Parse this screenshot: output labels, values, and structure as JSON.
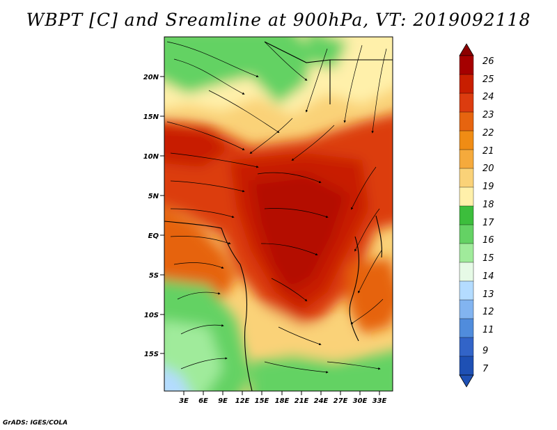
{
  "title": "WBPT [C] and Sreamline at 900hPa, VT: 2019092118",
  "credit": "GrADS: IGES/COLA",
  "map": {
    "lat_labels": [
      "20N",
      "15N",
      "10N",
      "5N",
      "EQ",
      "5S",
      "10S",
      "15S"
    ],
    "lon_labels": [
      "3E",
      "6E",
      "9E",
      "12E",
      "15E",
      "18E",
      "21E",
      "24E",
      "27E",
      "30E",
      "33E"
    ],
    "lon_range": [
      0,
      35
    ],
    "lat_range": [
      -20,
      25
    ]
  },
  "colorbar": {
    "labels": [
      "26",
      "25",
      "24",
      "23",
      "22",
      "21",
      "20",
      "19",
      "18",
      "17",
      "16",
      "15",
      "14",
      "13",
      "12",
      "11",
      "9",
      "7"
    ],
    "colors": [
      "#a50000",
      "#c81e00",
      "#dc3c0f",
      "#e6640f",
      "#f08c14",
      "#f5aa3c",
      "#fad278",
      "#fff0aa",
      "#3cbe3c",
      "#64d264",
      "#a0eb9b",
      "#e6fae6",
      "#b4dcff",
      "#82b4f0",
      "#508cdc",
      "#3264c8",
      "#1e50b4"
    ],
    "tip_top": "#8c0000",
    "tip_bottom": "#1e50b4"
  }
}
